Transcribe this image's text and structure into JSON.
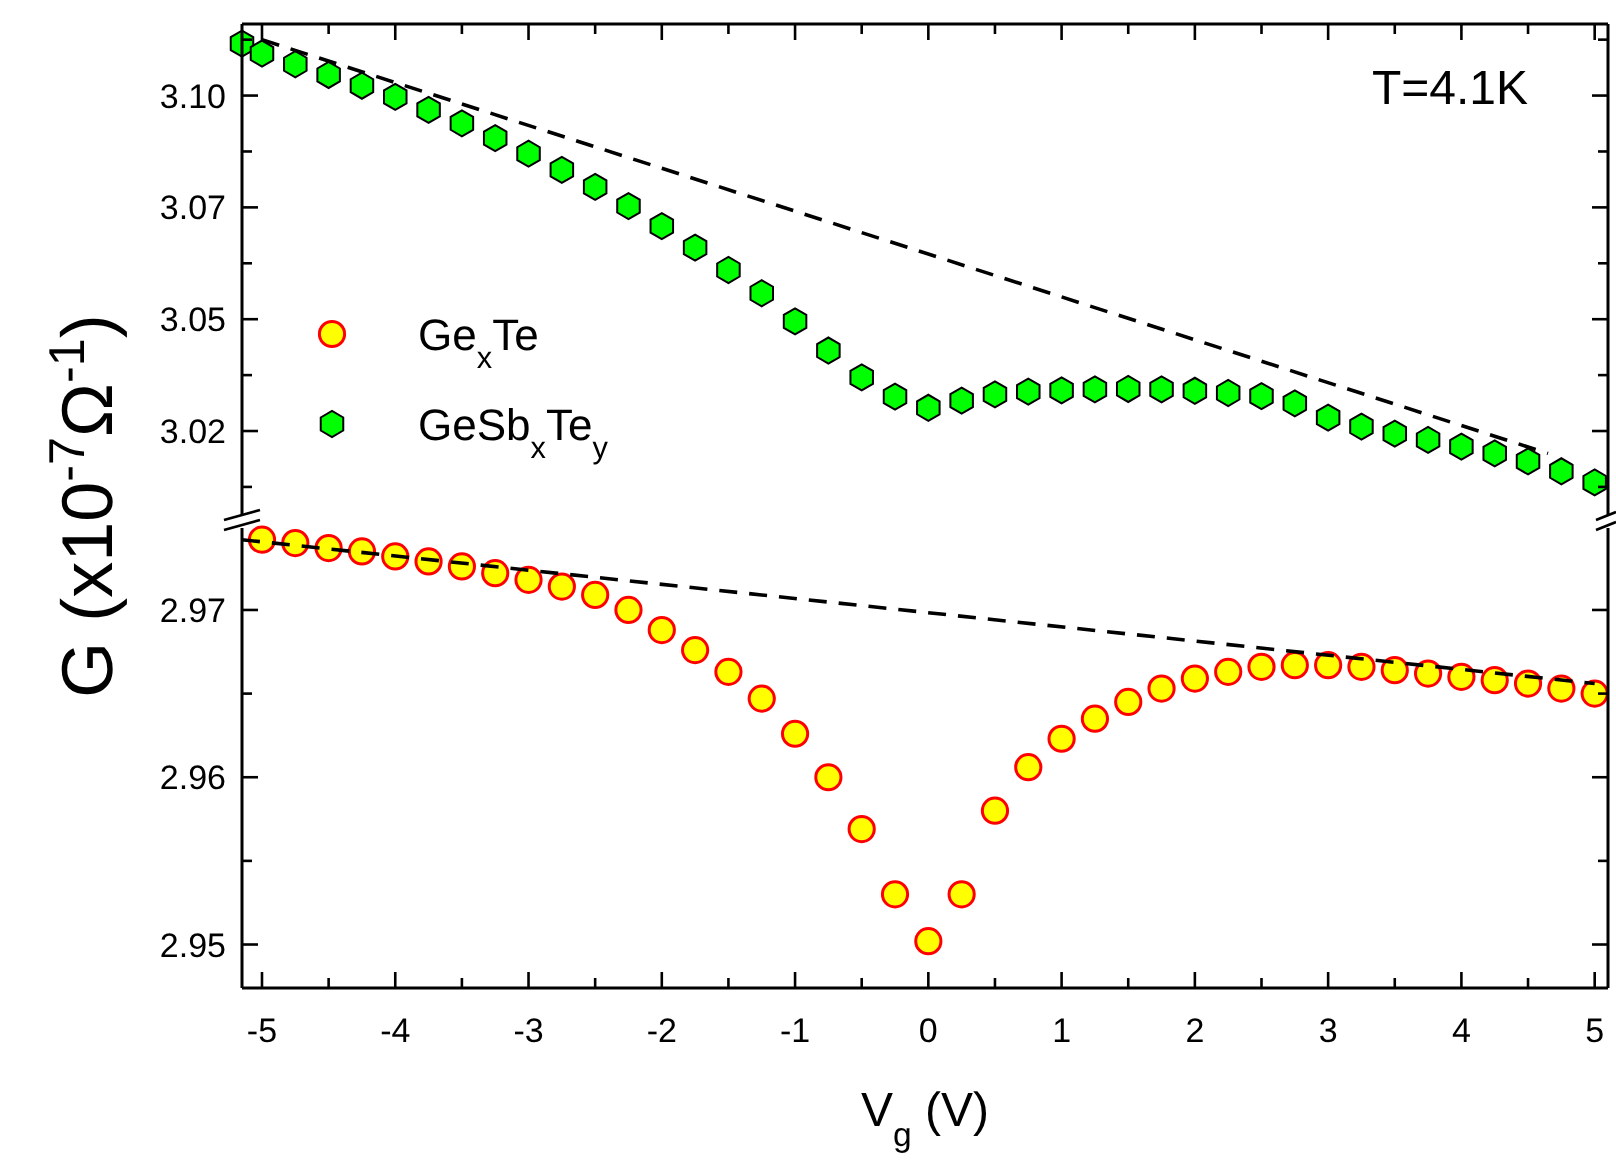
{
  "chart_data": [
    {
      "type": "scatter",
      "ylabel": "G (x10$^{-7}$Ω$^{-1}$)",
      "annotations": [
        "T=4.1K"
      ],
      "legend": "left",
      "tick_labels": "y",
      "xlim": [
        -5.15,
        5.1
      ],
      "xticks": [
        {
          "value": -5,
          "label": null
        },
        {
          "value": -4.5,
          "label": null
        },
        {
          "value": -4,
          "label": null
        },
        {
          "value": -3.5,
          "label": null
        },
        {
          "value": -3,
          "label": null
        },
        {
          "value": -2.5,
          "label": null
        },
        {
          "value": -2,
          "label": null
        },
        {
          "value": -1.5,
          "label": null
        },
        {
          "value": -1,
          "label": null
        },
        {
          "value": -0.5,
          "label": null
        },
        {
          "value": 0,
          "label": null
        },
        {
          "value": 0.5,
          "label": null
        },
        {
          "value": 1,
          "label": null
        },
        {
          "value": 1.5,
          "label": null
        },
        {
          "value": 2,
          "label": null
        },
        {
          "value": 2.5,
          "label": null
        },
        {
          "value": 3,
          "label": null
        },
        {
          "value": 3.5,
          "label": null
        },
        {
          "value": 4,
          "label": null
        },
        {
          "value": 4.5,
          "label": null
        },
        {
          "value": 5,
          "label": null
        }
      ],
      "ylim": [
        3.001,
        3.111
      ],
      "yticks": [
        {
          "value": 3.0075,
          "label": null
        },
        {
          "value": 3.02,
          "label": "3.02"
        },
        {
          "value": 3.0325,
          "label": null
        },
        {
          "value": 3.045,
          "label": "3.05"
        },
        {
          "value": 3.0575,
          "label": null
        },
        {
          "value": 3.07,
          "label": "3.07"
        },
        {
          "value": 3.0825,
          "label": null
        },
        {
          "value": 3.095,
          "label": "3.10"
        },
        {
          "value": 3.1075,
          "label": null
        }
      ],
      "series": [
        {
          "name": "GeSb$_{x}$Te$_{y}$",
          "type": "scatter",
          "color": "#00ff00",
          "x": [
            -5.15,
            -5.0,
            -4.75,
            -4.5,
            -4.25,
            -4.0,
            -3.75,
            -3.5,
            -3.25,
            -3.0,
            -2.75,
            -2.5,
            -2.25,
            -2.0,
            -1.75,
            -1.5,
            -1.25,
            -1.0,
            -0.75,
            -0.5,
            -0.25,
            0,
            0.25,
            0.5,
            0.75,
            1.0,
            1.25,
            1.5,
            1.75,
            2.0,
            2.25,
            2.5,
            2.75,
            3.0,
            3.25,
            3.5,
            3.75,
            4.0,
            4.25,
            4.5,
            4.75,
            5.0
          ],
          "values": [
            3.1066,
            3.1044,
            3.102,
            3.0996,
            3.0972,
            3.0947,
            3.0918,
            3.0888,
            3.0855,
            3.082,
            3.0784,
            3.0746,
            3.0703,
            3.0658,
            3.061,
            3.056,
            3.0508,
            3.0445,
            3.038,
            3.032,
            3.0277,
            3.0252,
            3.0268,
            3.0282,
            3.0288,
            3.0291,
            3.0293,
            3.0294,
            3.0293,
            3.029,
            3.0285,
            3.0278,
            3.0262,
            3.023,
            3.021,
            3.0194,
            3.018,
            3.0165,
            3.015,
            3.0132,
            3.011,
            3.0085
          ]
        },
        {
          "type": "line",
          "line_style": "dashed",
          "marker": "none",
          "color": "#000000",
          "x": [
            -5.0,
            4.65
          ],
          "values": [
            3.1075,
            3.015
          ]
        }
      ]
    },
    {
      "type": "scatter",
      "xlabel": "V$_{g}$ (V)",
      "legend": "left",
      "xlim": [
        -5.15,
        5.1
      ],
      "xticks": [
        -5,
        {
          "value": -4.5,
          "label": null
        },
        -4,
        {
          "value": -3.5,
          "label": null
        },
        -3,
        {
          "value": -2.5,
          "label": null
        },
        -2,
        {
          "value": -1.5,
          "label": null
        },
        -1,
        {
          "value": -0.5,
          "label": null
        },
        0,
        {
          "value": 0.5,
          "label": null
        },
        1,
        {
          "value": 1.5,
          "label": null
        },
        2,
        {
          "value": 2.5,
          "label": null
        },
        3,
        {
          "value": 3.5,
          "label": null
        },
        4,
        {
          "value": 4.5,
          "label": null
        },
        5
      ],
      "ylim": [
        2.9474,
        2.9749
      ],
      "yticks": [
        2.95,
        {
          "value": 2.955,
          "label": null
        },
        2.96,
        {
          "value": 2.965,
          "label": null
        },
        2.97
      ],
      "series": [
        {
          "name": "Ge$_{x}$Te",
          "type": "scatter",
          "marker": "circle",
          "color": "#ffff00",
          "x": [
            -5.0,
            -4.75,
            -4.5,
            -4.25,
            -4.0,
            -3.75,
            -3.5,
            -3.25,
            -3.0,
            -2.75,
            -2.5,
            -2.25,
            -2.0,
            -1.75,
            -1.5,
            -1.25,
            -1.0,
            -0.75,
            -0.5,
            -0.25,
            0,
            0.25,
            0.5,
            0.75,
            1.0,
            1.25,
            1.5,
            1.75,
            2.0,
            2.25,
            2.5,
            2.75,
            3.0,
            3.25,
            3.5,
            3.75,
            4.0,
            4.25,
            4.5,
            4.75,
            5.0
          ],
          "values": [
            2.9742,
            2.974,
            2.9737,
            2.9735,
            2.9732,
            2.9729,
            2.9726,
            2.9722,
            2.9718,
            2.9714,
            2.9709,
            2.97,
            2.9688,
            2.9676,
            2.9663,
            2.9647,
            2.9626,
            2.96,
            2.9569,
            2.953,
            2.9502,
            2.953,
            2.958,
            2.9606,
            2.9623,
            2.9635,
            2.9645,
            2.9653,
            2.9659,
            2.9663,
            2.9666,
            2.9667,
            2.9667,
            2.9666,
            2.9664,
            2.9662,
            2.966,
            2.9658,
            2.9656,
            2.9653,
            2.965
          ]
        },
        {
          "type": "line",
          "line_style": "dashed",
          "marker": "none",
          "color": "#000000",
          "x": [
            -5.15,
            5.0
          ],
          "values": [
            2.9742,
            2.9656
          ]
        }
      ]
    }
  ]
}
